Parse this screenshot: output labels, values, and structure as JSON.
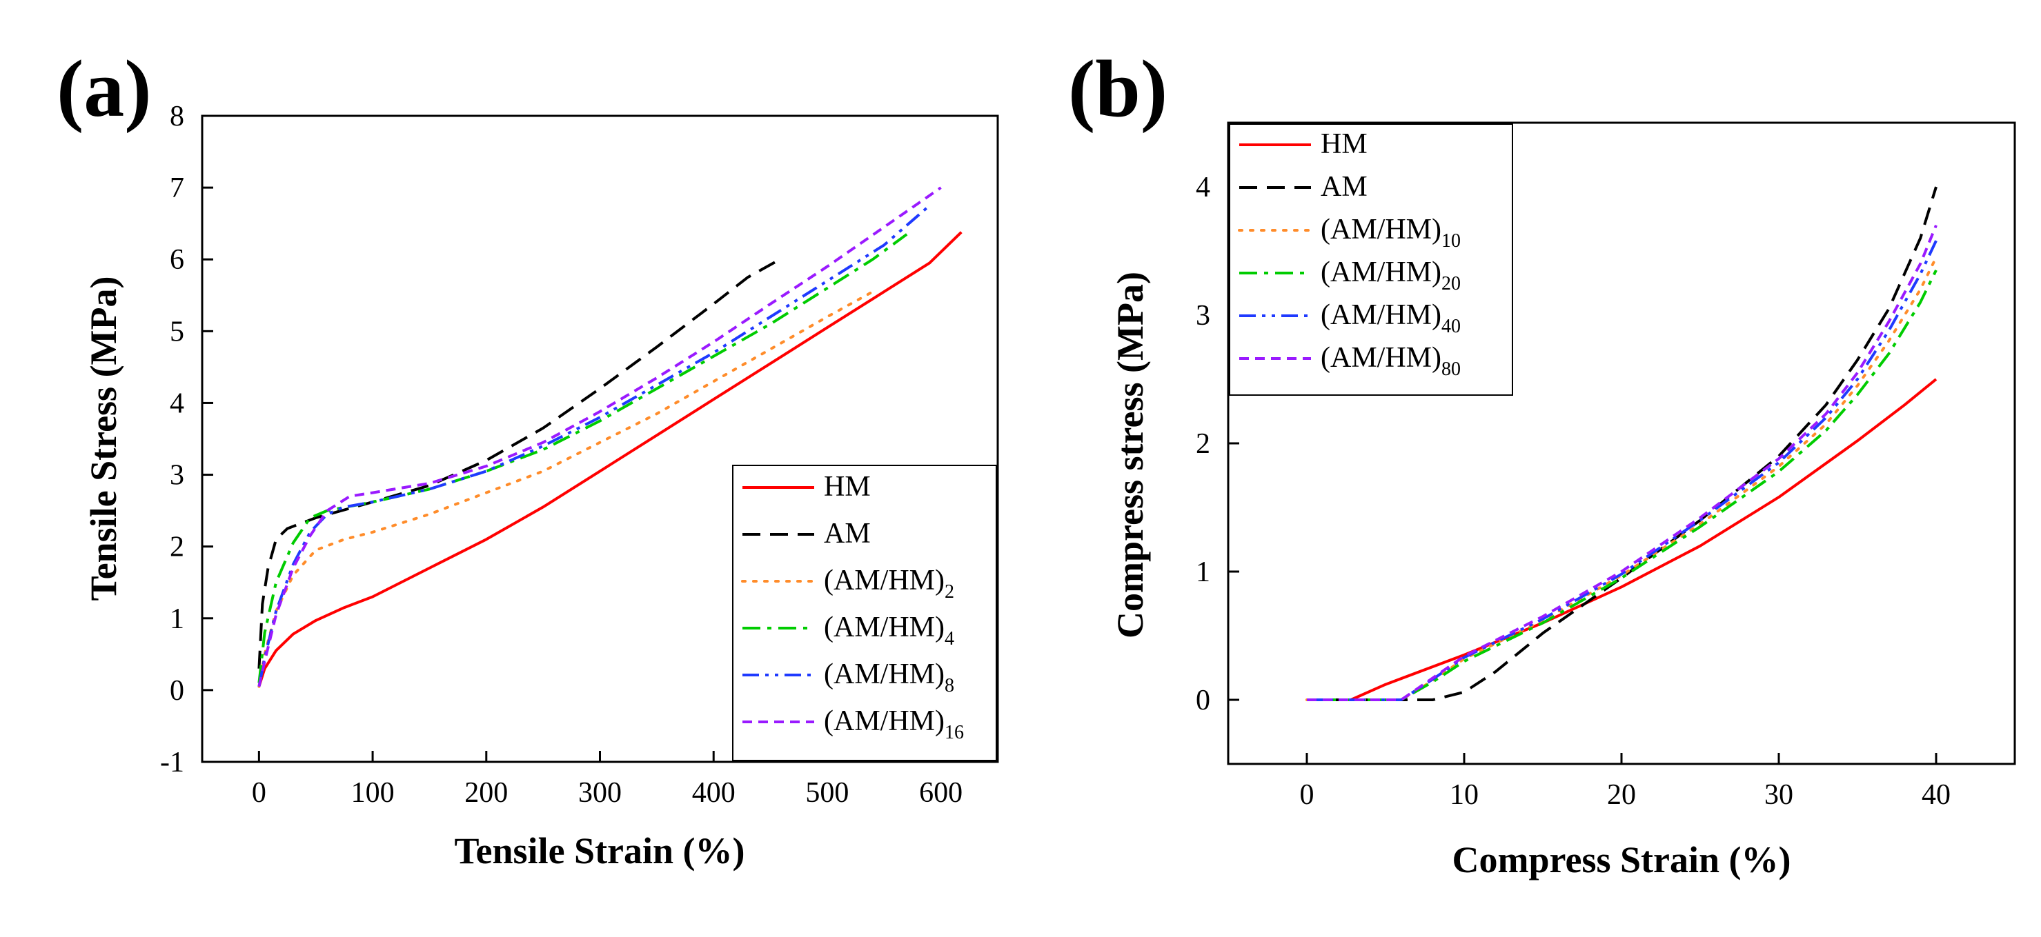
{
  "chart_data": [
    {
      "type": "line",
      "panel_label": "(a)",
      "xlabel": "Tensile Strain (%)",
      "ylabel": "Tensile Stress (MPa)",
      "xlim": [
        -50,
        650
      ],
      "ylim": [
        -1,
        8
      ],
      "xticks": [
        0,
        100,
        200,
        300,
        400,
        500,
        600
      ],
      "yticks": [
        -1,
        0,
        1,
        2,
        3,
        4,
        5,
        6,
        7,
        8
      ],
      "grid": false,
      "legend_position": "bottom-right",
      "series": [
        {
          "name": "HM",
          "label_main": "HM",
          "label_sub": "",
          "color": "#ff0000",
          "dash": "solid",
          "x": [
            0,
            5,
            15,
            30,
            50,
            75,
            100,
            150,
            200,
            250,
            300,
            350,
            400,
            450,
            500,
            550,
            590,
            618
          ],
          "y": [
            0.05,
            0.3,
            0.55,
            0.78,
            0.97,
            1.15,
            1.3,
            1.7,
            2.1,
            2.55,
            3.05,
            3.55,
            4.05,
            4.55,
            5.05,
            5.55,
            5.95,
            6.38
          ]
        },
        {
          "name": "AM",
          "label_main": "AM",
          "label_sub": "",
          "color": "#000000",
          "dash": "dashed",
          "x": [
            0,
            3,
            8,
            15,
            25,
            50,
            100,
            150,
            200,
            250,
            300,
            350,
            400,
            430,
            455
          ],
          "y": [
            0.3,
            1.2,
            1.7,
            2.1,
            2.25,
            2.4,
            2.62,
            2.85,
            3.2,
            3.65,
            4.2,
            4.78,
            5.38,
            5.75,
            5.97
          ]
        },
        {
          "name": "(AM/HM)2",
          "label_main": "(AM/HM)",
          "label_sub": "2",
          "color": "#ff8c2a",
          "dash": "dotted",
          "x": [
            0,
            5,
            15,
            30,
            50,
            75,
            100,
            150,
            200,
            250,
            300,
            350,
            400,
            450,
            500,
            540
          ],
          "y": [
            0.05,
            0.5,
            1.1,
            1.6,
            1.95,
            2.1,
            2.2,
            2.45,
            2.75,
            3.05,
            3.45,
            3.85,
            4.3,
            4.75,
            5.2,
            5.55
          ]
        },
        {
          "name": "(AM/HM)4",
          "label_main": "(AM/HM)",
          "label_sub": "4",
          "color": "#00cc00",
          "dash": "dashdot",
          "x": [
            0,
            5,
            15,
            30,
            45,
            60,
            100,
            150,
            200,
            250,
            300,
            350,
            400,
            450,
            500,
            540,
            570
          ],
          "y": [
            0.1,
            0.8,
            1.5,
            2.05,
            2.4,
            2.5,
            2.62,
            2.8,
            3.05,
            3.35,
            3.75,
            4.2,
            4.65,
            5.1,
            5.6,
            6.0,
            6.35
          ]
        },
        {
          "name": "(AM/HM)8",
          "label_main": "(AM/HM)",
          "label_sub": "8",
          "color": "#1f3aff",
          "dash": "dashdotdot",
          "x": [
            0,
            5,
            15,
            30,
            45,
            60,
            75,
            100,
            150,
            200,
            250,
            300,
            350,
            400,
            450,
            500,
            550,
            590
          ],
          "y": [
            0.05,
            0.45,
            1.1,
            1.75,
            2.2,
            2.45,
            2.55,
            2.62,
            2.8,
            3.05,
            3.4,
            3.8,
            4.25,
            4.7,
            5.2,
            5.7,
            6.2,
            6.75
          ]
        },
        {
          "name": "(AM/HM)16",
          "label_main": "(AM/HM)",
          "label_sub": "16",
          "color": "#9a1aff",
          "dash": "shortdash",
          "x": [
            0,
            5,
            15,
            30,
            45,
            60,
            80,
            100,
            150,
            200,
            250,
            300,
            350,
            400,
            450,
            500,
            550,
            600
          ],
          "y": [
            0.05,
            0.4,
            1.05,
            1.7,
            2.15,
            2.5,
            2.7,
            2.75,
            2.88,
            3.12,
            3.45,
            3.88,
            4.35,
            4.85,
            5.38,
            5.9,
            6.45,
            7.0
          ]
        }
      ]
    },
    {
      "type": "line",
      "panel_label": "(b)",
      "xlabel": "Compress Strain (%)",
      "ylabel": "Compress stress (MPa)",
      "xlim": [
        -5,
        45
      ],
      "ylim": [
        -0.5,
        4.5
      ],
      "xticks": [
        0,
        10,
        20,
        30,
        40
      ],
      "yticks": [
        0,
        1,
        2,
        3,
        4
      ],
      "grid": false,
      "legend_position": "top-left",
      "series": [
        {
          "name": "HM",
          "label_main": "HM",
          "label_sub": "",
          "color": "#ff0000",
          "dash": "solid",
          "x": [
            0,
            2.8,
            5,
            10,
            15,
            20,
            25,
            30,
            35,
            38,
            40
          ],
          "y": [
            0,
            0,
            0.12,
            0.35,
            0.6,
            0.88,
            1.2,
            1.58,
            2.02,
            2.3,
            2.5
          ]
        },
        {
          "name": "AM",
          "label_main": "AM",
          "label_sub": "",
          "color": "#000000",
          "dash": "dashed",
          "x": [
            0,
            8,
            10,
            12,
            15,
            20,
            25,
            30,
            33,
            35,
            37,
            39,
            40
          ],
          "y": [
            0,
            0,
            0.06,
            0.22,
            0.52,
            0.95,
            1.4,
            1.9,
            2.3,
            2.65,
            3.05,
            3.6,
            4.0
          ]
        },
        {
          "name": "(AM/HM)10",
          "label_main": "(AM/HM)",
          "label_sub": "10",
          "color": "#ff8c2a",
          "dash": "dotted",
          "x": [
            0,
            6,
            8,
            10,
            15,
            20,
            25,
            30,
            33,
            35,
            37,
            39,
            40
          ],
          "y": [
            0,
            0,
            0.15,
            0.32,
            0.62,
            0.97,
            1.37,
            1.82,
            2.15,
            2.45,
            2.8,
            3.2,
            3.45
          ]
        },
        {
          "name": "(AM/HM)20",
          "label_main": "(AM/HM)",
          "label_sub": "20",
          "color": "#00cc00",
          "dash": "dashdot",
          "x": [
            0,
            6,
            8,
            10,
            15,
            20,
            25,
            30,
            33,
            35,
            37,
            39,
            40
          ],
          "y": [
            0,
            0,
            0.14,
            0.3,
            0.6,
            0.95,
            1.35,
            1.78,
            2.1,
            2.38,
            2.7,
            3.1,
            3.35
          ]
        },
        {
          "name": "(AM/HM)40",
          "label_main": "(AM/HM)",
          "label_sub": "40",
          "color": "#1f3aff",
          "dash": "dashdotdot",
          "x": [
            0,
            6,
            8,
            10,
            15,
            20,
            25,
            30,
            33,
            35,
            37,
            39,
            40
          ],
          "y": [
            0,
            0,
            0.16,
            0.33,
            0.63,
            0.98,
            1.4,
            1.85,
            2.2,
            2.5,
            2.88,
            3.32,
            3.58
          ]
        },
        {
          "name": "(AM/HM)80",
          "label_main": "(AM/HM)",
          "label_sub": "80",
          "color": "#9a1aff",
          "dash": "shortdash",
          "x": [
            0,
            6,
            8,
            10,
            15,
            20,
            25,
            30,
            33,
            35,
            37,
            39,
            40
          ],
          "y": [
            0,
            0,
            0.17,
            0.34,
            0.65,
            1.0,
            1.42,
            1.88,
            2.23,
            2.55,
            2.95,
            3.4,
            3.7
          ]
        }
      ]
    }
  ]
}
